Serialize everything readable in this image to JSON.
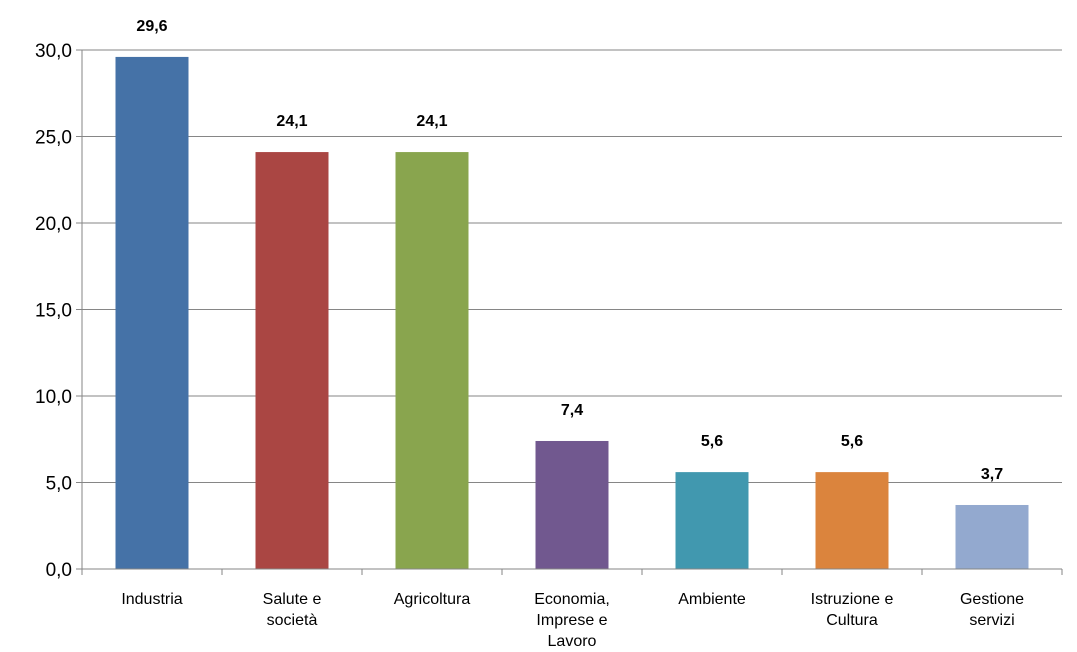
{
  "chart_data": {
    "type": "bar",
    "title": "",
    "xlabel": "",
    "ylabel": "",
    "ylim": [
      0,
      30
    ],
    "yticks": [
      "0,0",
      "5,0",
      "10,0",
      "15,0",
      "20,0",
      "25,0",
      "30,0"
    ],
    "grid": true,
    "legend": "none",
    "categories": [
      [
        "Industria"
      ],
      [
        "Salute e",
        "società"
      ],
      [
        "Agricoltura"
      ],
      [
        "Economia,",
        "Imprese e",
        "Lavoro"
      ],
      [
        "Ambiente"
      ],
      [
        "Istruzione e",
        "Cultura"
      ],
      [
        "Gestione",
        "servizi"
      ]
    ],
    "values": [
      29.6,
      24.1,
      24.1,
      7.4,
      5.6,
      5.6,
      3.7
    ],
    "value_labels": [
      "29,6",
      "24,1",
      "24,1",
      "7,4",
      "5,6",
      "5,6",
      "3,7"
    ],
    "colors": [
      "#4572A7",
      "#AA4643",
      "#89A54E",
      "#71588F",
      "#4198AF",
      "#DB843D",
      "#93A9CF"
    ]
  }
}
